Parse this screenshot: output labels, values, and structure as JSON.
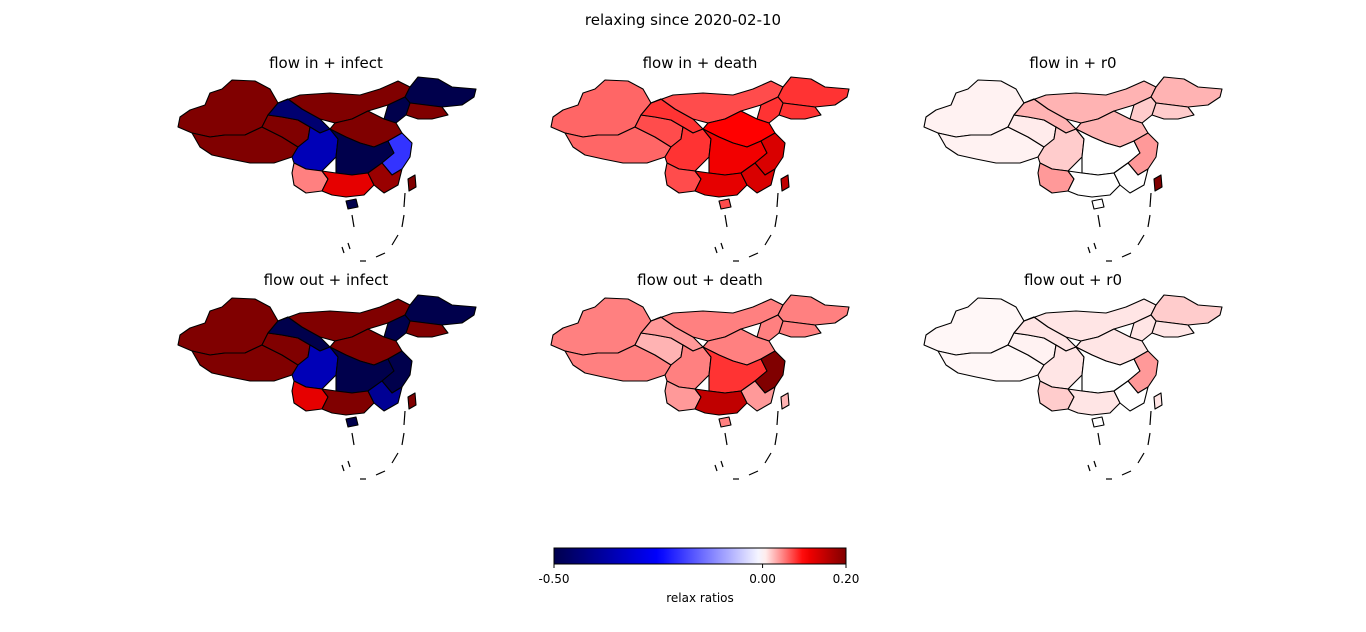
{
  "figure": {
    "suptitle": "relaxing since 2020-02-10"
  },
  "chart_data": {
    "type": "heatmap",
    "panels": [
      {
        "title": "flow in + infect",
        "regions": [
          {
            "name": "west",
            "value": 0.2
          },
          {
            "name": "tibet",
            "value": 0.2
          },
          {
            "name": "qinghai",
            "value": 0.2
          },
          {
            "name": "gansu",
            "value": -0.45
          },
          {
            "name": "inner-mongolia",
            "value": 0.2
          },
          {
            "name": "heilongjiang",
            "value": -0.5
          },
          {
            "name": "jilin",
            "value": 0.2
          },
          {
            "name": "liaoning",
            "value": -0.5
          },
          {
            "name": "north-china-plain",
            "value": 0.2
          },
          {
            "name": "sichuan",
            "value": -0.35
          },
          {
            "name": "central",
            "value": -0.5
          },
          {
            "name": "east-coast",
            "value": -0.2
          },
          {
            "name": "yunnan",
            "value": 0.05
          },
          {
            "name": "south",
            "value": 0.12
          },
          {
            "name": "southeast",
            "value": 0.18
          },
          {
            "name": "hainan",
            "value": -0.5
          },
          {
            "name": "taiwan",
            "value": 0.2
          }
        ]
      },
      {
        "title": "flow in + death",
        "regions": [
          {
            "name": "west",
            "value": 0.06
          },
          {
            "name": "tibet",
            "value": 0.06
          },
          {
            "name": "qinghai",
            "value": 0.07
          },
          {
            "name": "gansu",
            "value": 0.08
          },
          {
            "name": "inner-mongolia",
            "value": 0.07
          },
          {
            "name": "heilongjiang",
            "value": 0.08
          },
          {
            "name": "jilin",
            "value": 0.08
          },
          {
            "name": "liaoning",
            "value": 0.08
          },
          {
            "name": "north-china-plain",
            "value": 0.1
          },
          {
            "name": "sichuan",
            "value": 0.08
          },
          {
            "name": "central",
            "value": 0.11
          },
          {
            "name": "east-coast",
            "value": 0.13
          },
          {
            "name": "yunnan",
            "value": 0.07
          },
          {
            "name": "south",
            "value": 0.12
          },
          {
            "name": "southeast",
            "value": 0.13
          },
          {
            "name": "hainan",
            "value": 0.07
          },
          {
            "name": "taiwan",
            "value": 0.15
          }
        ]
      },
      {
        "title": "flow in + r0",
        "regions": [
          {
            "name": "west",
            "value": 0.005
          },
          {
            "name": "tibet",
            "value": 0.005
          },
          {
            "name": "qinghai",
            "value": 0.008
          },
          {
            "name": "gansu",
            "value": 0.03
          },
          {
            "name": "inner-mongolia",
            "value": 0.03
          },
          {
            "name": "heilongjiang",
            "value": 0.03
          },
          {
            "name": "jilin",
            "value": 0.02
          },
          {
            "name": "liaoning",
            "value": 0.02
          },
          {
            "name": "north-china-plain",
            "value": 0.03
          },
          {
            "name": "sichuan",
            "value": 0.02
          },
          {
            "name": "central",
            "value": 0.0
          },
          {
            "name": "east-coast",
            "value": 0.04
          },
          {
            "name": "yunnan",
            "value": 0.04
          },
          {
            "name": "south",
            "value": 0.0
          },
          {
            "name": "southeast",
            "value": 0.0
          },
          {
            "name": "hainan",
            "value": 0.0
          },
          {
            "name": "taiwan",
            "value": 0.2
          }
        ]
      },
      {
        "title": "flow out + infect",
        "regions": [
          {
            "name": "west",
            "value": 0.2
          },
          {
            "name": "tibet",
            "value": 0.2
          },
          {
            "name": "qinghai",
            "value": 0.2
          },
          {
            "name": "gansu",
            "value": -0.5
          },
          {
            "name": "inner-mongolia",
            "value": 0.2
          },
          {
            "name": "heilongjiang",
            "value": -0.5
          },
          {
            "name": "jilin",
            "value": 0.2
          },
          {
            "name": "liaoning",
            "value": -0.5
          },
          {
            "name": "north-china-plain",
            "value": 0.2
          },
          {
            "name": "sichuan",
            "value": -0.35
          },
          {
            "name": "central",
            "value": -0.5
          },
          {
            "name": "east-coast",
            "value": -0.5
          },
          {
            "name": "yunnan",
            "value": 0.12
          },
          {
            "name": "south",
            "value": 0.2
          },
          {
            "name": "southeast",
            "value": -0.4
          },
          {
            "name": "hainan",
            "value": -0.5
          },
          {
            "name": "taiwan",
            "value": 0.2
          }
        ]
      },
      {
        "title": "flow out + death",
        "regions": [
          {
            "name": "west",
            "value": 0.05
          },
          {
            "name": "tibet",
            "value": 0.05
          },
          {
            "name": "qinghai",
            "value": 0.03
          },
          {
            "name": "gansu",
            "value": 0.04
          },
          {
            "name": "inner-mongolia",
            "value": 0.05
          },
          {
            "name": "heilongjiang",
            "value": 0.05
          },
          {
            "name": "jilin",
            "value": 0.05
          },
          {
            "name": "liaoning",
            "value": 0.05
          },
          {
            "name": "north-china-plain",
            "value": 0.05
          },
          {
            "name": "sichuan",
            "value": 0.05
          },
          {
            "name": "central",
            "value": 0.08
          },
          {
            "name": "east-coast",
            "value": 0.2
          },
          {
            "name": "yunnan",
            "value": 0.04
          },
          {
            "name": "south",
            "value": 0.15
          },
          {
            "name": "southeast",
            "value": 0.04
          },
          {
            "name": "hainan",
            "value": 0.05
          },
          {
            "name": "taiwan",
            "value": 0.03
          }
        ]
      },
      {
        "title": "flow out + r0",
        "regions": [
          {
            "name": "west",
            "value": 0.003
          },
          {
            "name": "tibet",
            "value": 0.003
          },
          {
            "name": "qinghai",
            "value": 0.005
          },
          {
            "name": "gansu",
            "value": 0.01
          },
          {
            "name": "inner-mongolia",
            "value": 0.01
          },
          {
            "name": "heilongjiang",
            "value": 0.02
          },
          {
            "name": "jilin",
            "value": 0.01
          },
          {
            "name": "liaoning",
            "value": 0.01
          },
          {
            "name": "north-china-plain",
            "value": 0.01
          },
          {
            "name": "sichuan",
            "value": 0.01
          },
          {
            "name": "central",
            "value": 0.0
          },
          {
            "name": "east-coast",
            "value": 0.04
          },
          {
            "name": "yunnan",
            "value": 0.02
          },
          {
            "name": "south",
            "value": 0.01
          },
          {
            "name": "southeast",
            "value": 0.0
          },
          {
            "name": "hainan",
            "value": 0.0
          },
          {
            "name": "taiwan",
            "value": 0.01
          }
        ]
      }
    ],
    "colorbar": {
      "label": "relax ratios",
      "min": -0.5,
      "center": 0.0,
      "max": 0.2,
      "ticks": [
        -0.5,
        0.0,
        0.2
      ],
      "tick_labels": [
        "-0.50",
        "0.00",
        "0.20"
      ],
      "colormap": "seismic",
      "colors": [
        "#00004c",
        "#0000ff",
        "#ffffff",
        "#ff0000",
        "#800000"
      ]
    }
  }
}
